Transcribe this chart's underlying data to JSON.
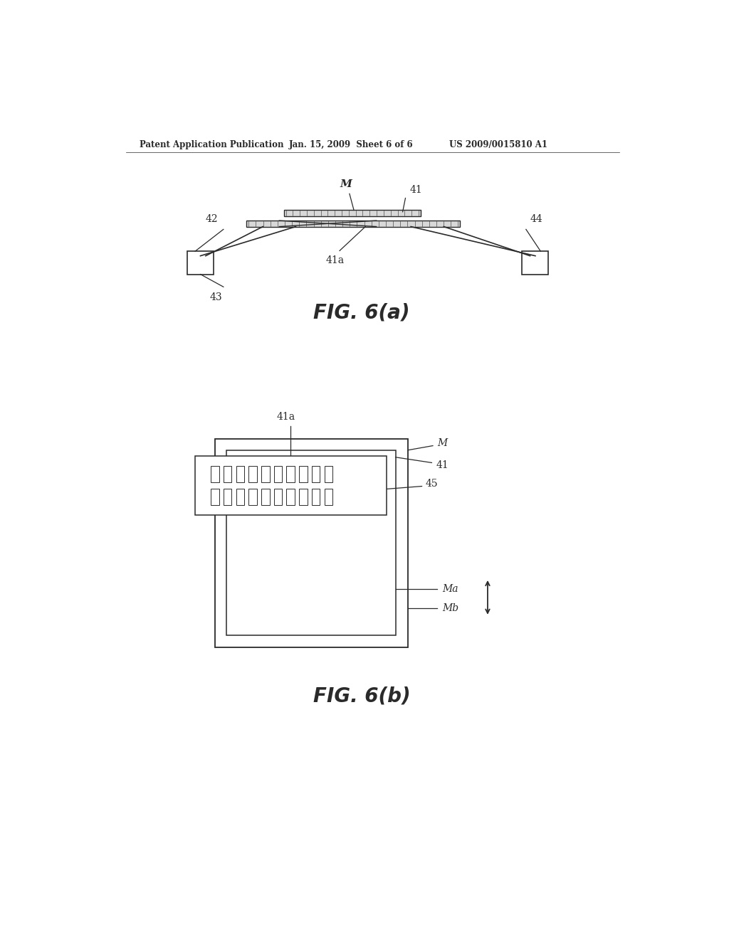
{
  "bg_color": "#ffffff",
  "line_color": "#2a2a2a",
  "header_left": "Patent Application Publication",
  "header_mid": "Jan. 15, 2009  Sheet 6 of 6",
  "header_right": "US 2009/0015810 A1",
  "fig6a_title": "FIG. 6(a)",
  "fig6b_title": "FIG. 6(b)",
  "labels": {
    "M_top": "M",
    "41_top": "41",
    "42": "42",
    "43": "43",
    "44": "44",
    "41a": "41a",
    "41a_b": "41a",
    "M_b": "M",
    "41_b": "41",
    "45": "45",
    "Ma": "Ma",
    "Mb": "Mb"
  }
}
